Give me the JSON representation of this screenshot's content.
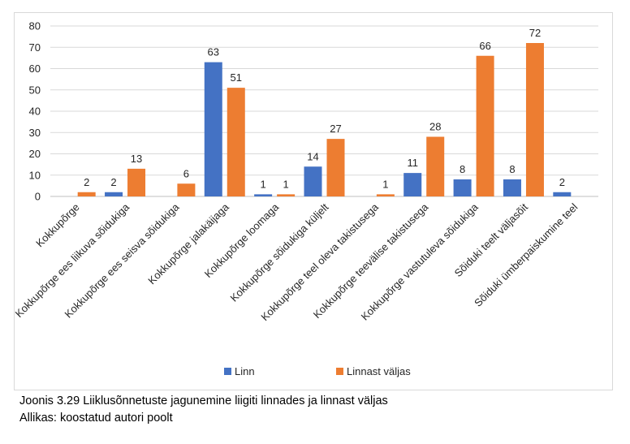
{
  "chart_data": {
    "type": "bar",
    "categories": [
      "Kokkupõrge",
      "Kokkupõrge ees liikuva sõidukiga",
      "Kokkupõrge ees seisva sõidukiga",
      "Kokkupõrge jalakäijaga",
      "Kokkupõrge loomaga",
      "Kokkupõrge sõidukiga küljelt",
      "Kokkupõrge teel oleva takistusega",
      "Kokkupõrge teevälise takistusega",
      "Kokkupõrge vastutuleva sõidukiga",
      "Sõiduki teelt väljasõit",
      "Sõiduki ümberpaiskumine teel"
    ],
    "series": [
      {
        "name": "Linn",
        "color": "#4472c4",
        "values": [
          null,
          2,
          null,
          63,
          1,
          14,
          null,
          11,
          8,
          8,
          2
        ]
      },
      {
        "name": "Linnast väljas",
        "color": "#ed7d31",
        "values": [
          2,
          13,
          6,
          51,
          1,
          27,
          1,
          28,
          66,
          72,
          null
        ]
      }
    ],
    "ylim": [
      0,
      80
    ],
    "yticks": [
      0,
      10,
      20,
      30,
      40,
      50,
      60,
      70,
      80
    ],
    "grid": true,
    "legend_position": "bottom"
  },
  "caption": {
    "line1": "Joonis 3.29 Liiklusõnnetuste jagunemine liigiti linnades ja linnast väljas",
    "line2": "Allikas: koostatud autori poolt"
  }
}
